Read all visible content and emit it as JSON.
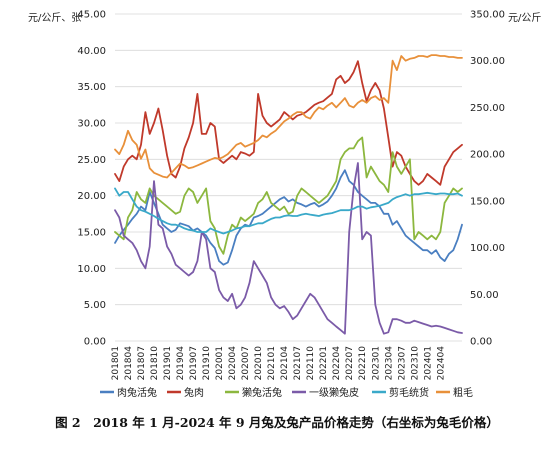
{
  "caption": "图 2　2018 年 1 月-2024 年 9 月兔及兔产品价格走势（右坐标为兔毛价格）",
  "chart_data": {
    "type": "line",
    "left_axis_label": "元/公斤、张",
    "right_axis_label": "元/公斤",
    "left_ylim": [
      0,
      45
    ],
    "left_ticks": [
      "0.00",
      "5.00",
      "10.00",
      "15.00",
      "20.00",
      "25.00",
      "30.00",
      "35.00",
      "40.00",
      "45.00"
    ],
    "right_ylim": [
      0,
      350
    ],
    "right_ticks": [
      "0.00",
      "50.00",
      "100.00",
      "150.00",
      "200.00",
      "250.00",
      "300.00",
      "350.00"
    ],
    "grid": true,
    "legend_position": "bottom",
    "x_start": "2018-01",
    "x_count": 81,
    "x_tick_labels": [
      "201801",
      "201804",
      "201807",
      "201810",
      "201901",
      "201904",
      "201907",
      "201910",
      "202001",
      "202004",
      "202007",
      "202010",
      "202101",
      "202104",
      "202107",
      "202110",
      "202201",
      "202204",
      "202207",
      "202210",
      "202301",
      "202304",
      "202307",
      "202310",
      "202401",
      "202404"
    ],
    "series": [
      {
        "name": "肉兔活兔",
        "axis": "left",
        "color": "#4a7fc1",
        "values": [
          13.5,
          14.5,
          15.3,
          16.0,
          16.8,
          17.5,
          18.5,
          18.0,
          20.5,
          19.0,
          17.5,
          16.0,
          15.5,
          15.0,
          15.3,
          16.2,
          16.0,
          15.8,
          15.2,
          15.5,
          15.0,
          14.5,
          13.5,
          12.8,
          11.0,
          10.5,
          10.8,
          12.5,
          14.5,
          15.5,
          16.0,
          15.8,
          17.0,
          17.2,
          17.5,
          18.0,
          18.5,
          19.0,
          19.5,
          19.8,
          19.2,
          19.5,
          19.0,
          18.8,
          18.5,
          18.8,
          19.0,
          18.5,
          18.8,
          19.2,
          20.0,
          21.0,
          22.5,
          23.5,
          22.0,
          21.5,
          20.5,
          20.0,
          19.5,
          19.0,
          19.0,
          18.5,
          17.5,
          17.5,
          16.0,
          16.5,
          15.5,
          14.5,
          14.0,
          13.5,
          13.0,
          12.5,
          12.5,
          12.0,
          12.5,
          11.5,
          11.0,
          12.0,
          12.5,
          14.0,
          16.0
        ]
      },
      {
        "name": "兔肉",
        "axis": "left",
        "color": "#c0392b",
        "values": [
          23.0,
          22.0,
          24.0,
          25.0,
          25.5,
          25.0,
          27.0,
          31.5,
          28.5,
          30.0,
          32.0,
          29.0,
          25.5,
          23.0,
          22.5,
          24.0,
          26.5,
          28.0,
          30.0,
          34.0,
          28.5,
          28.5,
          30.0,
          29.5,
          25.0,
          24.5,
          25.0,
          25.5,
          25.0,
          26.0,
          25.8,
          25.5,
          26.0,
          34.0,
          31.0,
          30.0,
          29.5,
          30.0,
          30.5,
          31.5,
          31.0,
          30.5,
          31.0,
          31.2,
          31.5,
          32.0,
          32.5,
          32.8,
          33.0,
          33.5,
          34.0,
          36.0,
          36.5,
          35.5,
          36.0,
          37.0,
          38.5,
          35.5,
          33.0,
          34.5,
          35.5,
          34.5,
          32.0,
          28.0,
          24.0,
          26.0,
          25.5,
          24.0,
          23.0,
          22.0,
          21.5,
          22.0,
          23.0,
          22.5,
          22.0,
          21.5,
          24.0,
          25.0,
          26.0,
          26.5,
          27.0
        ]
      },
      {
        "name": "獭兔活兔",
        "axis": "left",
        "color": "#8cb73e",
        "values": [
          15.0,
          14.5,
          14.0,
          17.0,
          18.0,
          20.5,
          19.5,
          19.0,
          21.0,
          20.0,
          19.5,
          19.0,
          18.5,
          18.0,
          17.5,
          17.8,
          20.0,
          21.0,
          20.5,
          19.0,
          20.0,
          21.0,
          16.5,
          15.5,
          13.0,
          12.0,
          14.5,
          16.0,
          15.5,
          17.0,
          16.5,
          17.0,
          17.5,
          19.0,
          19.5,
          20.5,
          19.0,
          18.5,
          18.0,
          18.5,
          17.5,
          17.8,
          20.0,
          21.0,
          20.5,
          20.0,
          19.5,
          19.0,
          19.5,
          20.0,
          21.0,
          22.0,
          25.0,
          26.0,
          26.5,
          26.5,
          27.5,
          28.0,
          22.5,
          24.0,
          23.0,
          22.0,
          21.5,
          20.5,
          26.0,
          24.0,
          23.0,
          24.0,
          25.0,
          14.0,
          15.0,
          14.5,
          14.0,
          14.5,
          14.0,
          15.0,
          19.0,
          20.0,
          21.0,
          20.5,
          21.0
        ]
      },
      {
        "name": "一级獭兔皮",
        "axis": "left",
        "color": "#7b5ba8",
        "values": [
          18.0,
          17.0,
          14.5,
          14.0,
          13.5,
          12.5,
          11.0,
          10.0,
          13.0,
          22.0,
          16.0,
          15.5,
          13.0,
          12.0,
          10.5,
          10.0,
          9.5,
          9.0,
          9.5,
          11.0,
          15.0,
          14.0,
          10.0,
          9.5,
          7.0,
          6.0,
          5.5,
          6.5,
          4.5,
          5.0,
          6.0,
          8.0,
          11.0,
          10.0,
          9.0,
          8.0,
          6.0,
          5.0,
          4.5,
          4.8,
          4.0,
          3.0,
          3.5,
          4.5,
          5.5,
          6.5,
          6.0,
          5.0,
          4.0,
          3.0,
          2.5,
          2.0,
          1.5,
          1.0,
          15.0,
          21.0,
          24.5,
          14.0,
          15.0,
          14.5,
          5.0,
          2.5,
          1.0,
          1.2,
          3.0,
          3.0,
          2.8,
          2.5,
          2.5,
          2.8,
          2.6,
          2.4,
          2.2,
          2.0,
          2.1,
          2.0,
          1.8,
          1.6,
          1.4,
          1.2,
          1.1
        ]
      },
      {
        "name": "剪毛统货",
        "axis": "left",
        "color": "#3aa9c9",
        "values": [
          21.0,
          20.0,
          20.5,
          20.5,
          19.5,
          18.5,
          18.0,
          17.8,
          17.5,
          17.2,
          16.8,
          16.5,
          16.2,
          16.0,
          16.0,
          15.8,
          15.5,
          15.3,
          15.2,
          15.0,
          15.0,
          15.0,
          15.5,
          15.2,
          15.0,
          14.8,
          15.0,
          15.2,
          15.5,
          15.6,
          15.8,
          15.8,
          16.0,
          16.2,
          16.2,
          16.5,
          16.8,
          17.0,
          17.0,
          17.2,
          17.3,
          17.2,
          17.2,
          17.4,
          17.5,
          17.4,
          17.3,
          17.2,
          17.4,
          17.5,
          17.6,
          17.8,
          18.0,
          18.0,
          18.0,
          18.2,
          18.5,
          18.5,
          18.2,
          18.4,
          18.5,
          18.6,
          18.8,
          19.0,
          19.5,
          19.8,
          20.0,
          20.2,
          20.0,
          20.2,
          20.2,
          20.3,
          20.4,
          20.3,
          20.2,
          20.3,
          20.3,
          20.2,
          20.2,
          20.3,
          20.0
        ]
      },
      {
        "name": "粗毛",
        "axis": "right",
        "color": "#e8903a",
        "values": [
          205,
          200,
          210,
          225,
          215,
          210,
          195,
          205,
          185,
          180,
          178,
          176,
          175,
          180,
          185,
          190,
          188,
          185,
          186,
          188,
          190,
          192,
          194,
          196,
          195,
          197,
          200,
          205,
          210,
          212,
          208,
          210,
          212,
          215,
          220,
          218,
          222,
          225,
          230,
          235,
          238,
          242,
          245,
          245,
          240,
          238,
          245,
          250,
          248,
          252,
          255,
          250,
          255,
          260,
          252,
          250,
          255,
          258,
          255,
          260,
          262,
          258,
          260,
          255,
          300,
          290,
          305,
          300,
          302,
          303,
          305,
          305,
          304,
          306,
          306,
          305,
          305,
          304,
          304,
          303,
          303
        ]
      }
    ]
  }
}
